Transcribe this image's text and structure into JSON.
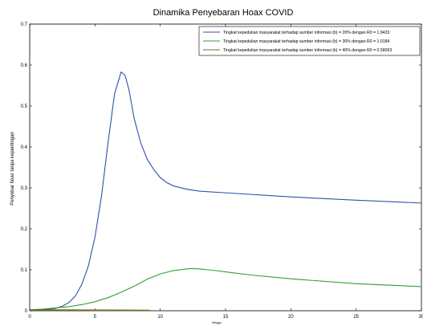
{
  "chart_data": {
    "type": "line",
    "title": "Dinamika Penyebaran Hoax COVID",
    "xlabel": "Minggu",
    "ylabel": "Penyebar hoax tanpa kepentingan",
    "xlim": [
      0,
      30
    ],
    "ylim": [
      0,
      0.7
    ],
    "xticks": [
      0,
      5,
      10,
      15,
      20,
      25,
      30
    ],
    "yticks": [
      0,
      0.1,
      0.2,
      0.3,
      0.4,
      0.5,
      0.6,
      0.7
    ],
    "grid": false,
    "legend_position": "top-right",
    "series": [
      {
        "name": "Tingkat kepedulian masyarakat terhadap sumber informasi (b) = 20% dengan R0 = 1.9433",
        "color": "#3050a8",
        "x": [
          0,
          1,
          2,
          2.5,
          3,
          3.5,
          4,
          4.5,
          5,
          5.5,
          6,
          6.5,
          7,
          7.3,
          7.6,
          8,
          8.5,
          9,
          9.5,
          10,
          10.5,
          11,
          12,
          13,
          15,
          20,
          25,
          30
        ],
        "y": [
          0.001,
          0.002,
          0.006,
          0.011,
          0.02,
          0.036,
          0.065,
          0.11,
          0.18,
          0.28,
          0.41,
          0.53,
          0.583,
          0.575,
          0.54,
          0.47,
          0.41,
          0.37,
          0.345,
          0.325,
          0.313,
          0.305,
          0.297,
          0.292,
          0.288,
          0.278,
          0.27,
          0.263
        ]
      },
      {
        "name": "Tingkat kepedulian masyarakat terhadap sumber informasi (b) = 30% dengan R0 = 1.0184",
        "color": "#2fa02f",
        "x": [
          0,
          1,
          2,
          3,
          4,
          5,
          6,
          7,
          8,
          9,
          10,
          11,
          12,
          12.5,
          13,
          14,
          15,
          17,
          20,
          25,
          30
        ],
        "y": [
          0.002,
          0.004,
          0.007,
          0.01,
          0.015,
          0.022,
          0.032,
          0.045,
          0.06,
          0.077,
          0.09,
          0.098,
          0.102,
          0.103,
          0.102,
          0.099,
          0.095,
          0.087,
          0.078,
          0.066,
          0.059
        ]
      },
      {
        "name": "Tingkat kepedulian masyarakat terhadap sumber informasi (b) = 40% dengan R0 = 0.58063",
        "color": "#6e6e28",
        "x": [
          0,
          2,
          4,
          6,
          8,
          9.2
        ],
        "y": [
          0.002,
          0.0018,
          0.0016,
          0.0013,
          0.0011,
          0.001
        ]
      }
    ]
  }
}
